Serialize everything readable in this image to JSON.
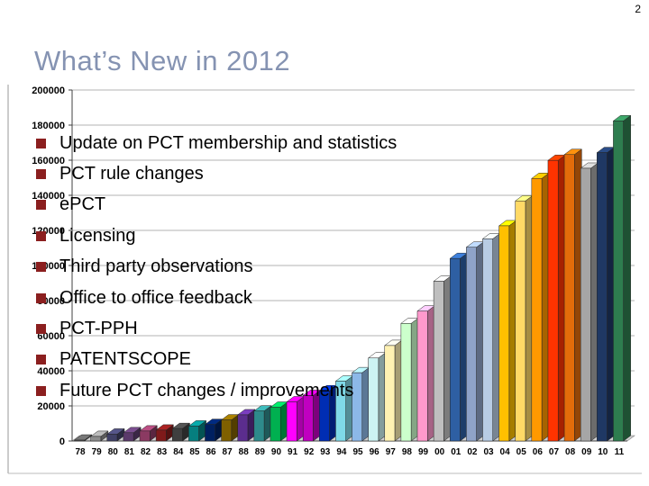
{
  "slide": {
    "page_number": "2",
    "title": "What’s New in 2012",
    "title_color": "#8593b2"
  },
  "bullets": {
    "color": "#8b1f1f",
    "items": [
      "Update on PCT membership and statistics",
      "PCT rule changes",
      "ePCT",
      "Licensing",
      "Third party observations",
      "Office to office feedback",
      "PCT-PPH",
      "PATENTSCOPE",
      "Future PCT changes / improvements"
    ]
  },
  "chart_data": {
    "type": "bar",
    "style": "3d",
    "title": "",
    "xlabel": "",
    "ylabel": "",
    "grid": true,
    "ylim": [
      0,
      200000
    ],
    "ytick_interval": 20000,
    "ytick_labels": [
      "0",
      "20000",
      "40000",
      "60000",
      "80000",
      "100000",
      "120000",
      "140000",
      "160000",
      "180000",
      "200000"
    ],
    "categories": [
      "78",
      "79",
      "80",
      "81",
      "82",
      "83",
      "84",
      "85",
      "86",
      "87",
      "88",
      "89",
      "90",
      "91",
      "92",
      "93",
      "94",
      "95",
      "96",
      "97",
      "98",
      "99",
      "00",
      "01",
      "02",
      "03",
      "04",
      "05",
      "06",
      "07",
      "08",
      "09",
      "10",
      "11"
    ],
    "values": [
      500,
      2600,
      3900,
      4700,
      5700,
      6200,
      7100,
      8500,
      9400,
      12000,
      14900,
      17100,
      19200,
      22300,
      25900,
      28600,
      34100,
      38900,
      47300,
      54400,
      67000,
      74000,
      91000,
      104000,
      110400,
      115200,
      122600,
      136800,
      149600,
      159900,
      163200,
      155400,
      164300,
      182400
    ],
    "colors": [
      "#595959",
      "#8c8c8c",
      "#404066",
      "#5b3a6b",
      "#8b3a62",
      "#7f1a1a",
      "#3f3f3f",
      "#067f7f",
      "#002060",
      "#7f6000",
      "#5b2d8e",
      "#2e8b8b",
      "#00b050",
      "#ff00ff",
      "#c000c0",
      "#002db3",
      "#7fd9e8",
      "#8cb8e8",
      "#ccf2f2",
      "#fff2b3",
      "#ccffcc",
      "#ff99cc",
      "#bfbfbf",
      "#2e5fa3",
      "#8fa3c8",
      "#b8cce4",
      "#ffc000",
      "#ffd966",
      "#ff9900",
      "#ff3300",
      "#e36c0a",
      "#a6a6a6",
      "#1f3864",
      "#2e7d4f"
    ]
  }
}
